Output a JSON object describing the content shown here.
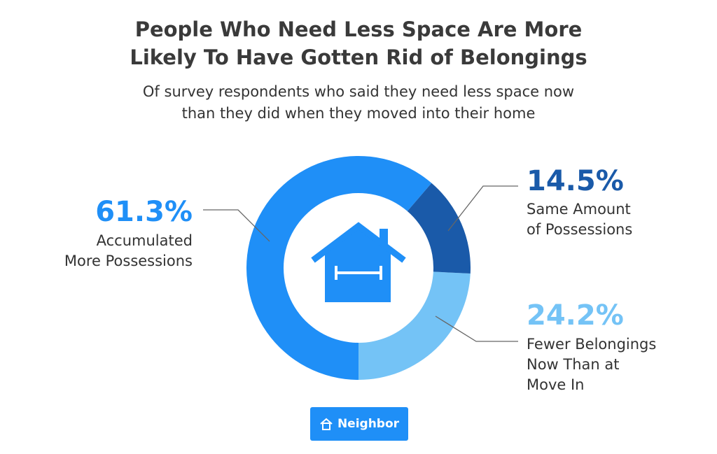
{
  "chart_data": {
    "type": "pie",
    "donut": true,
    "title": "People Who Need Less Space Are More\nLikely To Have Gotten Rid of Belongings",
    "subtitle": "Of survey respondents who said they need less space now\nthan they did when they moved into their home",
    "categories": [
      "Accumulated\nMore Possessions",
      "Same Amount\nof Possessions",
      "Fewer Belongings\nNow Than at\nMove In"
    ],
    "values": [
      61.3,
      14.5,
      24.2
    ],
    "value_labels": [
      "61.3%",
      "14.5%",
      "24.2%"
    ],
    "colors": [
      "#1f8ff7",
      "#1a5aa9",
      "#74c3f6"
    ],
    "brand": "Neighbor"
  }
}
